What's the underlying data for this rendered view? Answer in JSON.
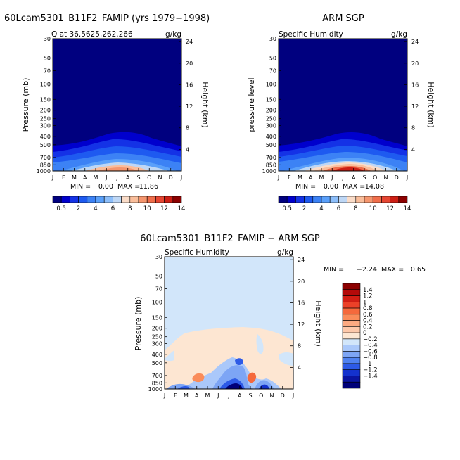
{
  "chart_data": [
    {
      "type": "contour",
      "figure_title": "60Lcam5301_B11F2_FAMIP (yrs 1979−1998)",
      "subtitle_left": "Q at 36.5625,262.266",
      "units": "g/kg",
      "ylabel_left": "Pressure (mb)",
      "ylabel_right": "Height (km)",
      "xticks": [
        "J",
        "F",
        "M",
        "A",
        "M",
        "J",
        "J",
        "A",
        "S",
        "O",
        "N",
        "D",
        "J"
      ],
      "pressure_ticks": [
        "30",
        "50",
        "70",
        "100",
        "150",
        "200",
        "250",
        "300",
        "400",
        "500",
        "700",
        "850",
        "1000"
      ],
      "pressure_values": [
        30,
        50,
        70,
        100,
        150,
        200,
        250,
        300,
        400,
        500,
        700,
        850,
        1000
      ],
      "height_ticks": [
        "24",
        "20",
        "16",
        "12",
        "8",
        "4"
      ],
      "height_values": [
        24,
        20,
        16,
        12,
        8,
        4
      ],
      "min_label": "MIN =",
      "min_value": "0.00",
      "max_label": "MAX =",
      "max_value": "11.86",
      "peak_month_index": 6.2,
      "peak_value": 11.86
    },
    {
      "type": "contour",
      "figure_title": "ARM SGP",
      "subtitle_left": "Specific Humidity",
      "units": "g/kg",
      "ylabel_left": "pressure level",
      "ylabel_right": "Height (km)",
      "xticks": [
        "J",
        "F",
        "M",
        "A",
        "M",
        "J",
        "J",
        "A",
        "S",
        "O",
        "N",
        "D",
        "J"
      ],
      "pressure_ticks": [
        "30",
        "50",
        "70",
        "100",
        "150",
        "200",
        "250",
        "300",
        "400",
        "500",
        "700",
        "850",
        "1000"
      ],
      "pressure_values": [
        30,
        50,
        70,
        100,
        150,
        200,
        250,
        300,
        400,
        500,
        700,
        850,
        1000
      ],
      "height_ticks": [
        "24",
        "20",
        "16",
        "12",
        "8",
        "4"
      ],
      "height_values": [
        24,
        20,
        16,
        12,
        8,
        4
      ],
      "min_label": "MIN =",
      "min_value": "0.00",
      "max_label": "MAX =",
      "max_value": "14.08",
      "peak_month_index": 6.6,
      "peak_value": 14.08
    },
    {
      "type": "contour",
      "figure_title": "60Lcam5301_B11F2_FAMIP − ARM SGP",
      "subtitle_left": "Specific Humidity",
      "units": "g/kg",
      "ylabel_left": "Pressure (mb)",
      "ylabel_right": "Height (km)",
      "xticks": [
        "J",
        "F",
        "M",
        "A",
        "M",
        "J",
        "J",
        "A",
        "S",
        "O",
        "N",
        "D",
        "J"
      ],
      "pressure_ticks": [
        "30",
        "50",
        "70",
        "100",
        "150",
        "200",
        "250",
        "300",
        "400",
        "500",
        "700",
        "850",
        "1000"
      ],
      "pressure_values": [
        30,
        50,
        70,
        100,
        150,
        200,
        250,
        300,
        400,
        500,
        700,
        850,
        1000
      ],
      "height_ticks": [
        "24",
        "20",
        "16",
        "12",
        "8",
        "4"
      ],
      "height_values": [
        24,
        20,
        16,
        12,
        8,
        4
      ],
      "min_label": "MIN =",
      "min_value": "−2.24",
      "max_label": "MAX =",
      "max_value": "0.65"
    }
  ],
  "colorbars": {
    "top": {
      "orientation": "horizontal",
      "colors": [
        "#00007f",
        "#0000cd",
        "#1432e6",
        "#1e5af0",
        "#3c82f5",
        "#5aa0fa",
        "#8cbefa",
        "#bed7f5",
        "#fadcc8",
        "#fabe9b",
        "#f5966e",
        "#f06e4b",
        "#e64632",
        "#cd1e14",
        "#8c0000"
      ],
      "labels": [
        "0.5",
        "2",
        "4",
        "6",
        "8",
        "10",
        "12",
        "14"
      ]
    },
    "diff": {
      "orientation": "vertical",
      "colors_top_to_bottom": [
        "#8c0000",
        "#b40a0a",
        "#d21e14",
        "#eb4128",
        "#f5693c",
        "#fa8c5a",
        "#fcaa82",
        "#fdc8aa",
        "#fde6d2",
        "#d2e6fa",
        "#aac8fa",
        "#7da5f5",
        "#5082f0",
        "#2d5ae6",
        "#1432cd",
        "#0a14a0",
        "#000078"
      ],
      "labels_top_to_bottom": [
        "1.4",
        "1.2",
        "1",
        "0.8",
        "0.6",
        "0.4",
        "0.2",
        "0",
        "−0.2",
        "−0.4",
        "−0.6",
        "−0.8",
        "−1",
        "−1.2",
        "−1.4"
      ]
    }
  }
}
